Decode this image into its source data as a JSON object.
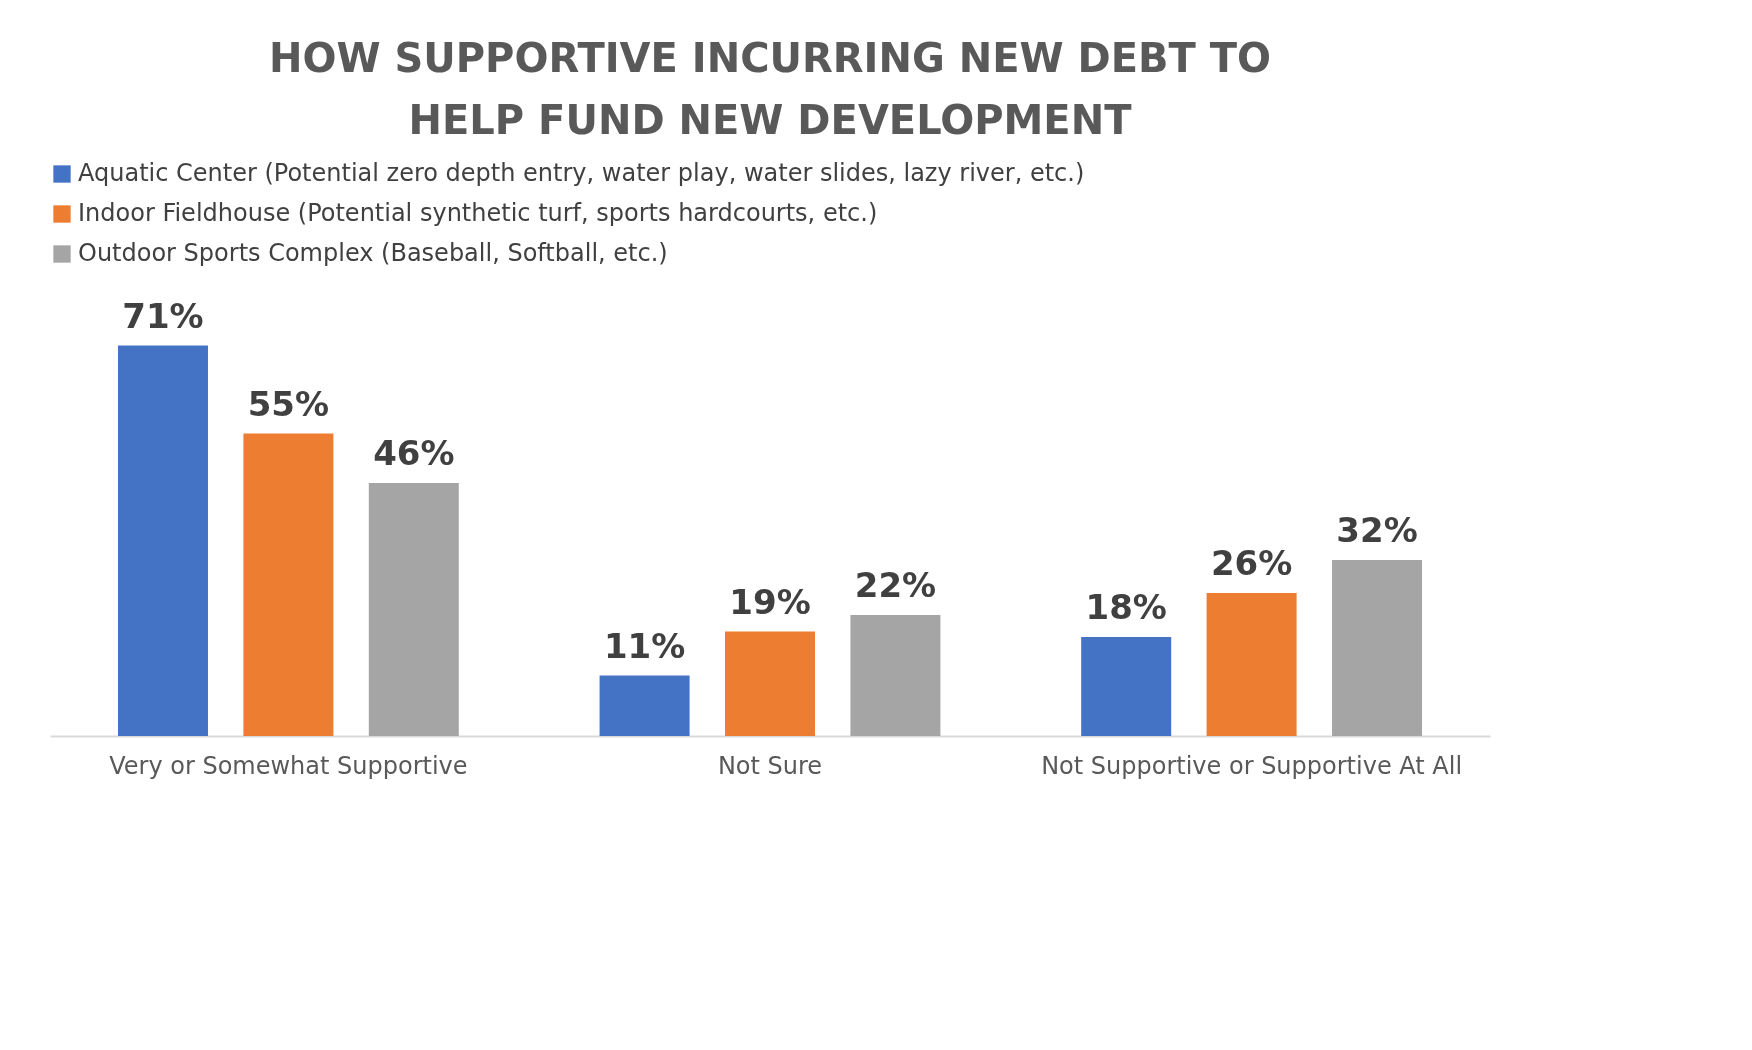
{
  "chart_data": {
    "type": "bar",
    "title": "HOW SUPPORTIVE INCURRING NEW DEBT TO HELP FUND NEW DEVELOPMENT",
    "categories": [
      "Very or Somewhat Supportive",
      "Not Sure",
      "Not Supportive or Supportive At All"
    ],
    "series": [
      {
        "name": "Aquatic Center (Potential zero depth entry, water play, water slides, lazy river, etc.)",
        "color": "#4472c4",
        "values": [
          71,
          11,
          18
        ],
        "value_labels": [
          "71%",
          "11%",
          "18%"
        ]
      },
      {
        "name": "Indoor Fieldhouse (Potential synthetic turf, sports hardcourts, etc.)",
        "color": "#ed7d31",
        "values": [
          55,
          19,
          26
        ],
        "value_labels": [
          "55%",
          "19%",
          "26%"
        ]
      },
      {
        "name": "Outdoor Sports Complex (Baseball, Softball, etc.)",
        "color": "#a5a5a5",
        "values": [
          46,
          22,
          32
        ],
        "value_labels": [
          "46%",
          "22%",
          "32%"
        ]
      }
    ],
    "legend": "top",
    "grid": false,
    "tick_labels": "x"
  }
}
